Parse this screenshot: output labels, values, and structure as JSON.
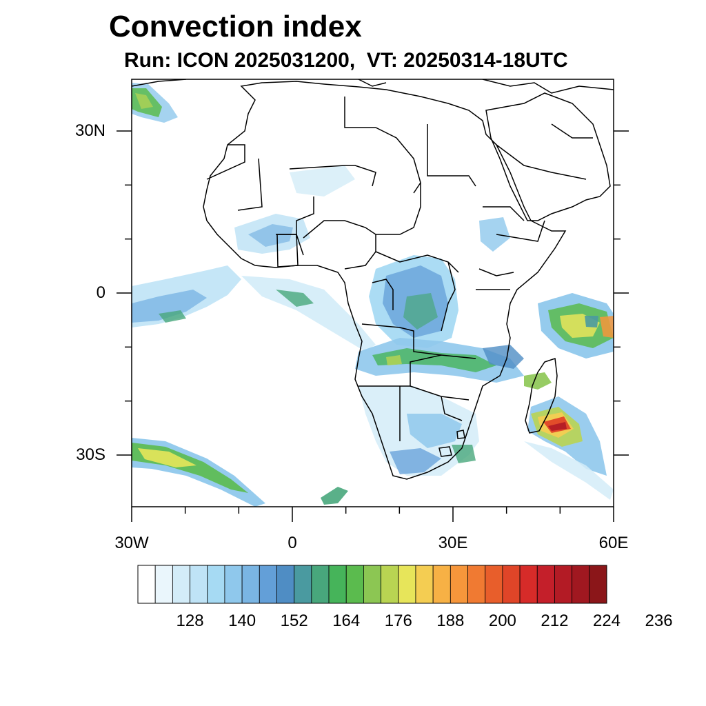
{
  "title": "Convection index",
  "subtitle": "Run: ICON 2025031200,  VT: 20250314-18UTC",
  "map": {
    "lat_ticks": [
      {
        "lat": 30,
        "label": "30N"
      },
      {
        "lat": 0,
        "label": "0"
      },
      {
        "lat": -30,
        "label": "30S"
      }
    ],
    "lon_ticks": [
      {
        "lon": -30,
        "label": "30W"
      },
      {
        "lon": 0,
        "label": "0"
      },
      {
        "lon": 30,
        "label": "30E"
      },
      {
        "lon": 60,
        "label": "60E"
      }
    ]
  },
  "colorbar": {
    "colors": [
      "#ffffff",
      "#eaf6fc",
      "#d3ecf8",
      "#bfe3f6",
      "#a6daf3",
      "#8fc8ec",
      "#7ab5e3",
      "#639fd8",
      "#4f8dc4",
      "#4a9aa0",
      "#48a77c",
      "#46b45a",
      "#5bbb4e",
      "#8cc653",
      "#b9d452",
      "#e7e55a",
      "#f4cd52",
      "#f7b145",
      "#f6963b",
      "#f07a32",
      "#e85e2b",
      "#e04528",
      "#d62b29",
      "#c41f2a",
      "#b31b25",
      "#a01820",
      "#8b1619"
    ],
    "labels": [
      "128",
      "140",
      "152",
      "164",
      "176",
      "188",
      "200",
      "212",
      "224",
      "236"
    ]
  }
}
